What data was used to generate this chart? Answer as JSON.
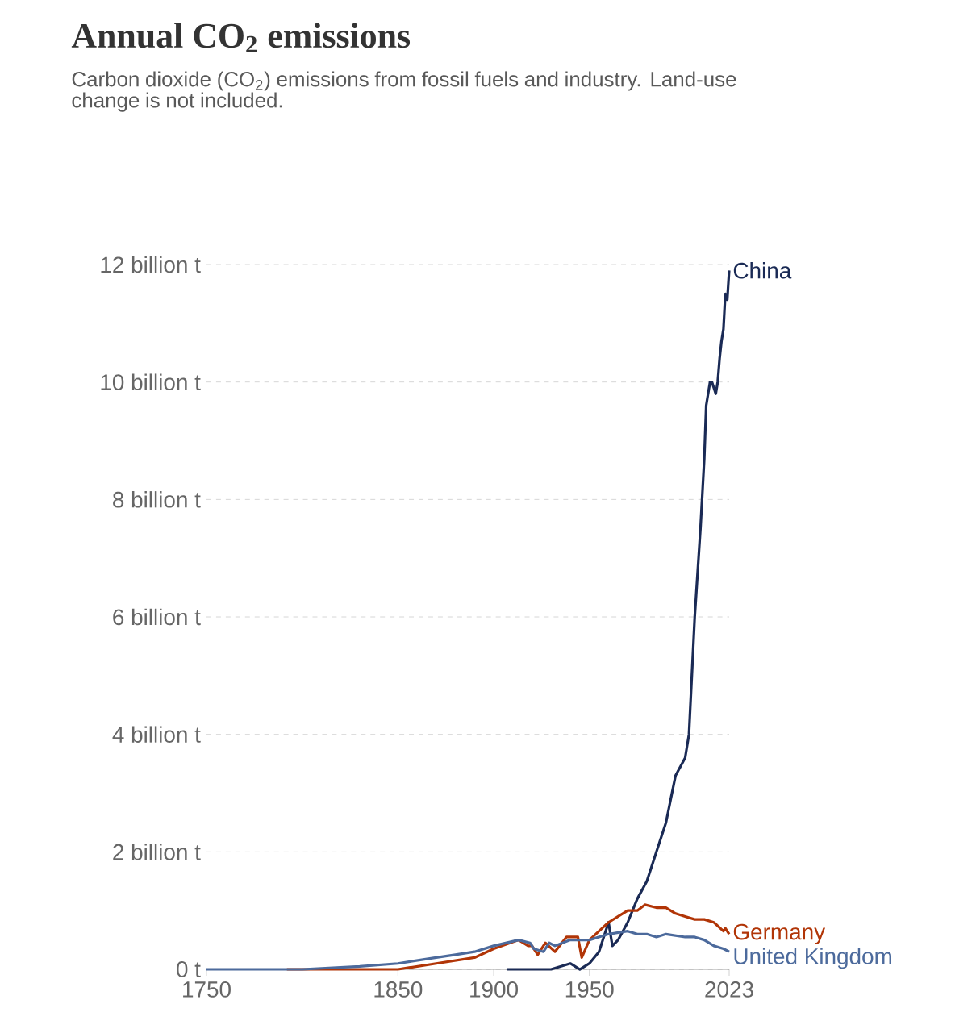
{
  "chart_data": {
    "type": "line",
    "title": "Annual CO$_{2}$ emissions",
    "subtitle": "Carbon dioxide (CO$_{2}$) emissions from fossil fuels and industry. Land-use change is not included.",
    "xlim": [
      1750,
      2023
    ],
    "xticks": [
      1750,
      1850,
      1900,
      1950,
      2023
    ],
    "ylim": [
      0,
      12
    ],
    "yticks": [
      {
        "value": 0,
        "label": "0 t"
      },
      {
        "value": 2,
        "label": "2 billion t"
      },
      {
        "value": 4,
        "label": "4 billion t"
      },
      {
        "value": 6,
        "label": "6 billion t"
      },
      {
        "value": 8,
        "label": "8 billion t"
      },
      {
        "value": 10,
        "label": "10 billion t"
      },
      {
        "value": 12,
        "label": "12 billion t"
      }
    ],
    "grid": "y",
    "series": [
      {
        "name": "China",
        "color": "#1a2a55",
        "x": [
          1907,
          1920,
          1930,
          1940,
          1945,
          1950,
          1955,
          1958,
          1960,
          1962,
          1965,
          1970,
          1975,
          1980,
          1985,
          1990,
          1995,
          2000,
          2002,
          2005,
          2008,
          2010,
          2011,
          2013,
          2014,
          2015,
          2016,
          2017,
          2018,
          2019,
          2020,
          2021,
          2022,
          2023
        ],
        "values": [
          0.0,
          0.0,
          0.0,
          0.1,
          0.0,
          0.1,
          0.3,
          0.6,
          0.8,
          0.4,
          0.5,
          0.8,
          1.2,
          1.5,
          2.0,
          2.5,
          3.3,
          3.6,
          4.0,
          6.0,
          7.5,
          8.7,
          9.6,
          10.0,
          10.0,
          9.9,
          9.8,
          10.0,
          10.4,
          10.7,
          10.9,
          11.5,
          11.4,
          11.9
        ]
      },
      {
        "name": "Germany",
        "color": "#b13507",
        "x": [
          1792,
          1820,
          1850,
          1870,
          1880,
          1890,
          1900,
          1913,
          1918,
          1920,
          1923,
          1927,
          1932,
          1938,
          1944,
          1946,
          1950,
          1955,
          1960,
          1965,
          1970,
          1975,
          1979,
          1985,
          1990,
          1995,
          2000,
          2005,
          2010,
          2015,
          2020,
          2021,
          2023
        ],
        "values": [
          0.0,
          0.0,
          0.0,
          0.1,
          0.15,
          0.2,
          0.35,
          0.5,
          0.4,
          0.4,
          0.25,
          0.45,
          0.3,
          0.55,
          0.55,
          0.2,
          0.5,
          0.65,
          0.8,
          0.9,
          1.0,
          1.0,
          1.1,
          1.05,
          1.05,
          0.95,
          0.9,
          0.85,
          0.85,
          0.8,
          0.65,
          0.7,
          0.6
        ]
      },
      {
        "name": "United Kingdom",
        "color": "#4c6a9c",
        "x": [
          1750,
          1800,
          1830,
          1850,
          1870,
          1880,
          1890,
          1900,
          1913,
          1919,
          1921,
          1926,
          1929,
          1932,
          1940,
          1950,
          1960,
          1970,
          1975,
          1980,
          1985,
          1990,
          2000,
          2005,
          2010,
          2015,
          2020,
          2023
        ],
        "values": [
          0.0,
          0.0,
          0.05,
          0.1,
          0.2,
          0.25,
          0.3,
          0.4,
          0.5,
          0.45,
          0.35,
          0.3,
          0.45,
          0.4,
          0.5,
          0.5,
          0.6,
          0.65,
          0.6,
          0.6,
          0.55,
          0.6,
          0.55,
          0.55,
          0.5,
          0.4,
          0.35,
          0.3
        ]
      }
    ]
  }
}
